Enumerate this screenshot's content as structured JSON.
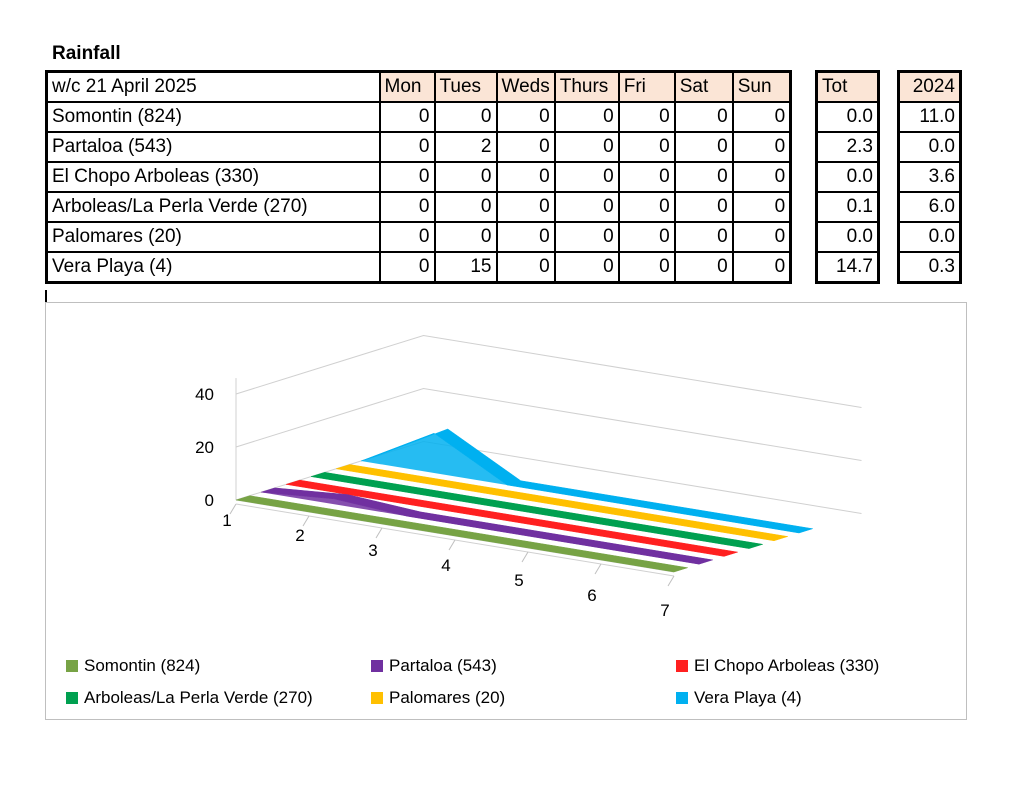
{
  "title": "Rainfall",
  "week_label": "w/c 21 April  2025",
  "day_headers": [
    "Mon",
    "Tues",
    "Weds",
    "Thurs",
    "Fri",
    "Sat",
    "Sun"
  ],
  "tot_header": "Tot",
  "prev_year_header": "2024",
  "rows": [
    {
      "name": "Somontin (824)",
      "days": [
        "0",
        "0",
        "0",
        "0",
        "0",
        "0",
        "0"
      ],
      "tot": "0.0",
      "prev": "11.0"
    },
    {
      "name": "Partaloa (543)",
      "days": [
        "0",
        "2",
        "0",
        "0",
        "0",
        "0",
        "0"
      ],
      "tot": "2.3",
      "prev": "0.0"
    },
    {
      "name": "El Chopo Arboleas (330)",
      "days": [
        "0",
        "0",
        "0",
        "0",
        "0",
        "0",
        "0"
      ],
      "tot": "0.0",
      "prev": "3.6"
    },
    {
      "name": "Arboleas/La Perla Verde (270)",
      "days": [
        "0",
        "0",
        "0",
        "0",
        "0",
        "0",
        "0"
      ],
      "tot": "0.1",
      "prev": "6.0"
    },
    {
      "name": "Palomares (20)",
      "days": [
        "0",
        "0",
        "0",
        "0",
        "0",
        "0",
        "0"
      ],
      "tot": "0.0",
      "prev": "0.0"
    },
    {
      "name": "Vera Playa (4)",
      "days": [
        "0",
        "15",
        "0",
        "0",
        "0",
        "0",
        "0"
      ],
      "tot": "14.7",
      "prev": "0.3"
    }
  ],
  "chart_data": {
    "type": "area",
    "variant": "3d-ribbon",
    "x": [
      "1",
      "2",
      "3",
      "4",
      "5",
      "6",
      "7"
    ],
    "y_ticks": [
      "0",
      "20",
      "40"
    ],
    "ylim": [
      0,
      40
    ],
    "legend_position": "bottom",
    "series": [
      {
        "name": "Somontin (824)",
        "color": "#77a345",
        "values": [
          0,
          0,
          0,
          0,
          0,
          0,
          0
        ]
      },
      {
        "name": "Partaloa (543)",
        "color": "#7030a0",
        "values": [
          0,
          2,
          0,
          0,
          0,
          0,
          0
        ]
      },
      {
        "name": "El Chopo Arboleas (330)",
        "color": "#ff2020",
        "values": [
          0,
          0,
          0,
          0,
          0,
          0,
          0
        ]
      },
      {
        "name": "Arboleas/La Perla Verde (270)",
        "color": "#00a050",
        "values": [
          0,
          0,
          0,
          0,
          0,
          0,
          0
        ]
      },
      {
        "name": "Palomares (20)",
        "color": "#ffc000",
        "values": [
          0,
          0,
          0,
          0,
          0,
          0,
          0
        ]
      },
      {
        "name": "Vera Playa (4)",
        "color": "#00b0f0",
        "values": [
          0,
          15,
          0,
          0,
          0,
          0,
          0
        ]
      }
    ]
  }
}
